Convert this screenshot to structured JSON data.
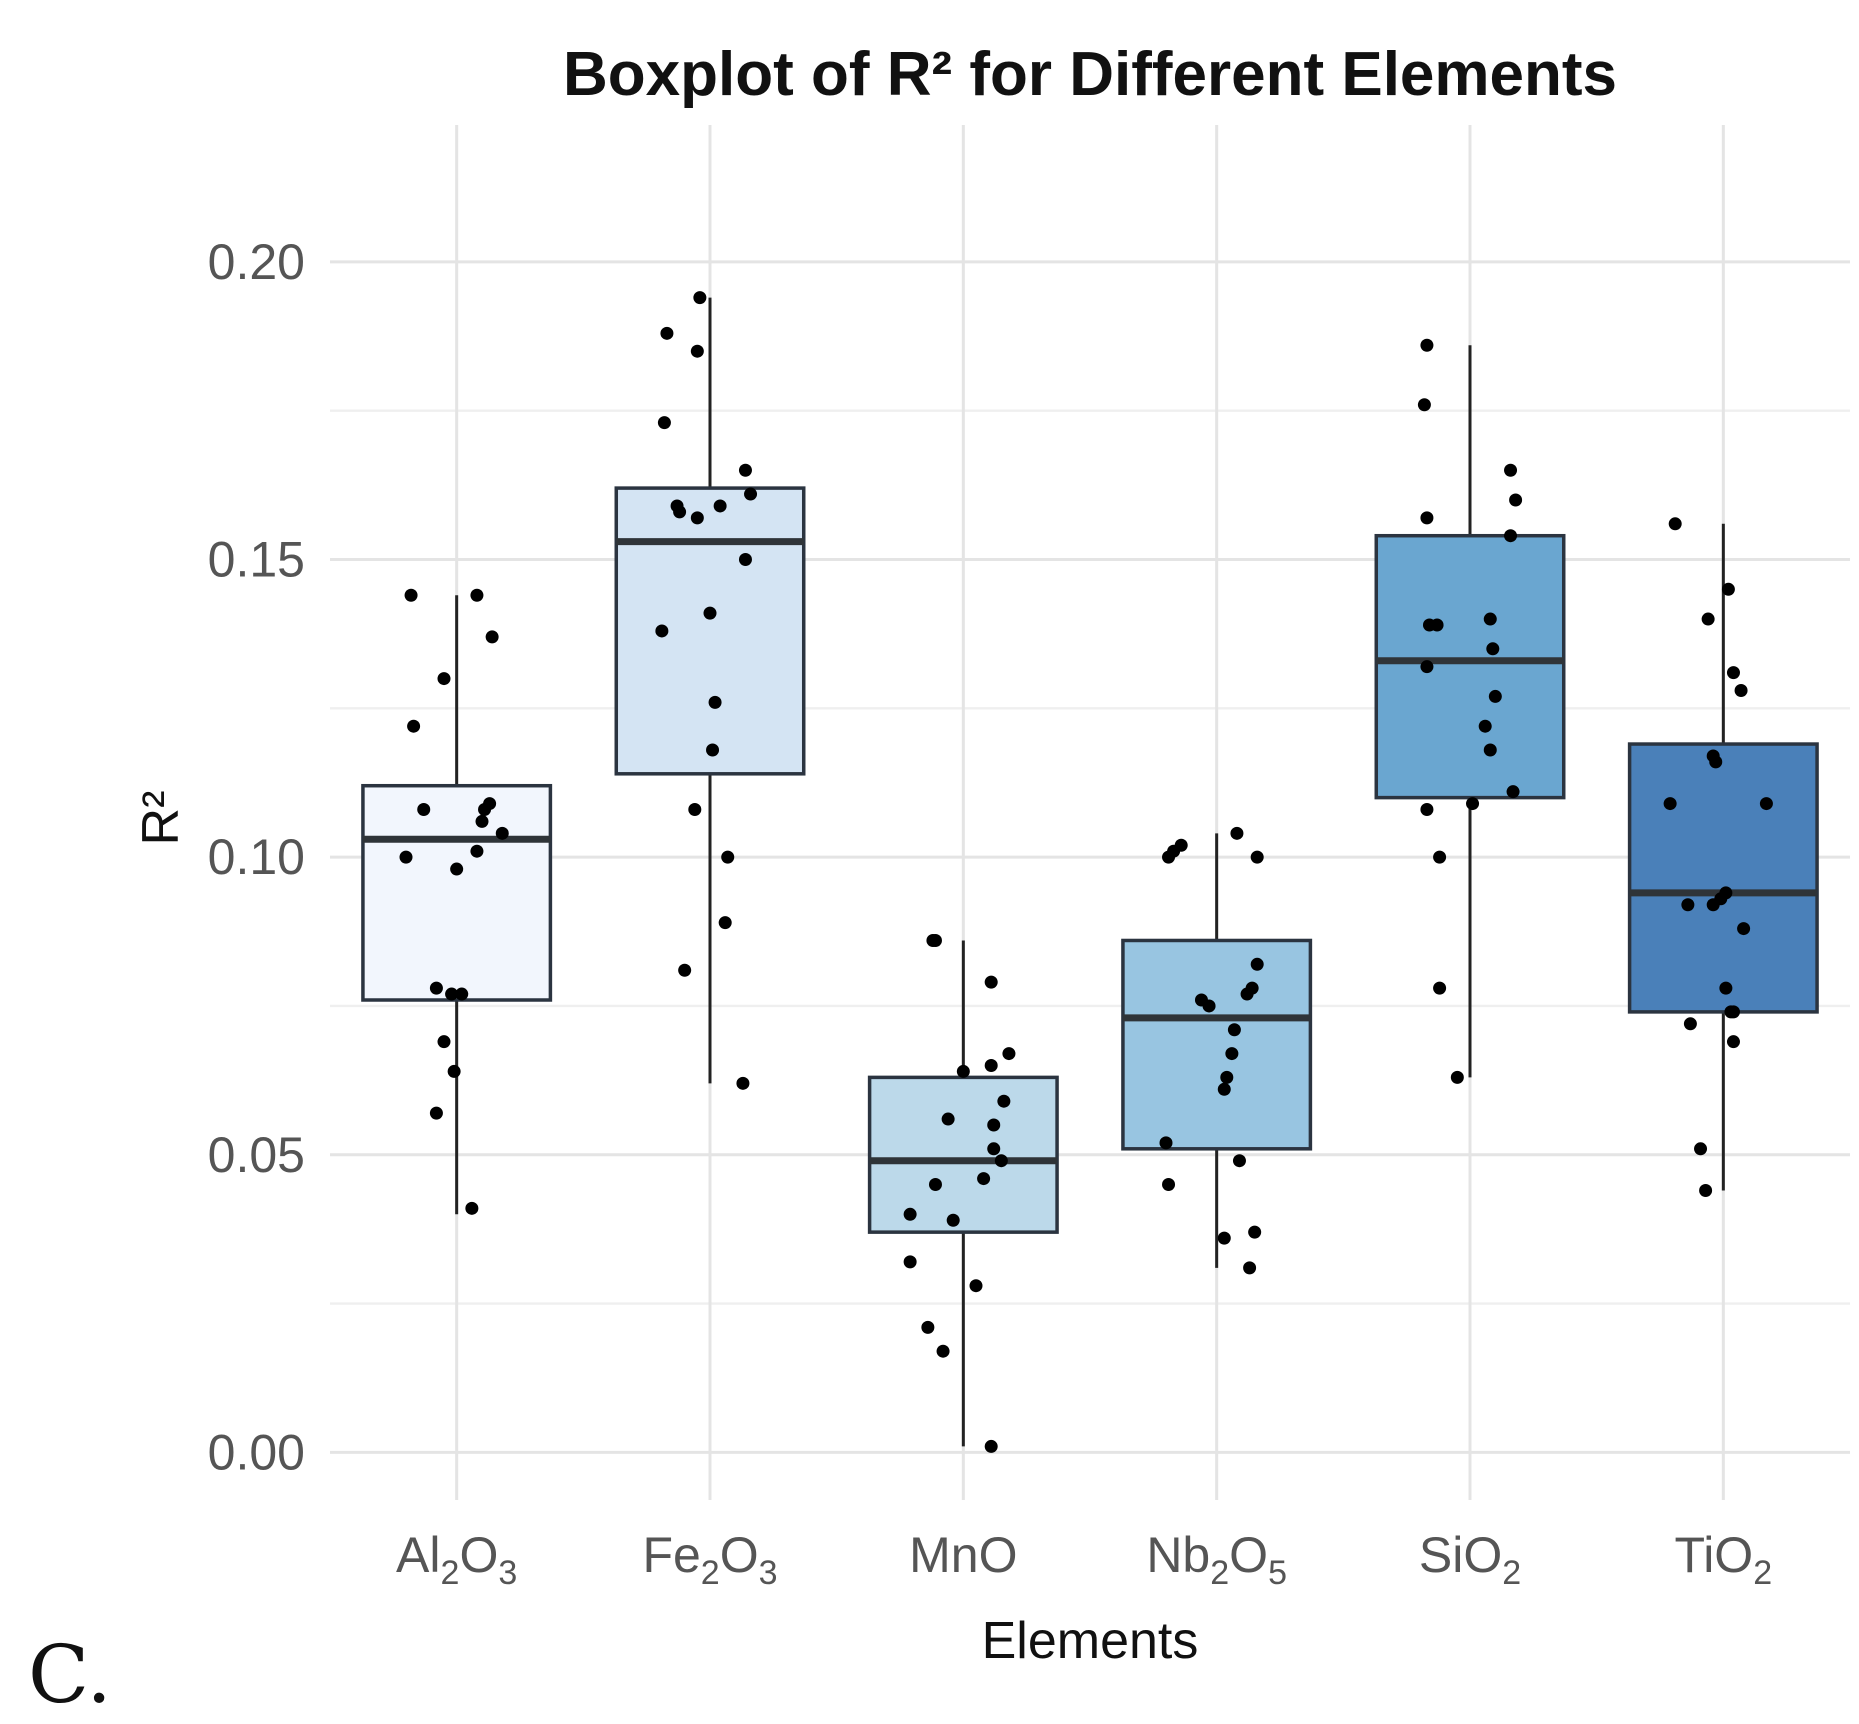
{
  "chart_data": {
    "type": "boxplot",
    "title": "Boxplot of R² for Different Elements",
    "xlabel": "Elements",
    "ylabel": "R²",
    "ylim": [
      -0.008,
      0.223
    ],
    "yticks": [
      "0.00",
      "0.05",
      "0.10",
      "0.15",
      "0.20"
    ],
    "ytick_values": [
      0.0,
      0.05,
      0.1,
      0.15,
      0.2
    ],
    "categories": [
      {
        "base": "Al",
        "s1": "2",
        "mid": "O",
        "s2": "3",
        "full": "Al2O3"
      },
      {
        "base": "Fe",
        "s1": "2",
        "mid": "O",
        "s2": "3",
        "full": "Fe2O3"
      },
      {
        "base": "MnO",
        "s1": "",
        "mid": "",
        "s2": "",
        "full": "MnO"
      },
      {
        "base": "Nb",
        "s1": "2",
        "mid": "O",
        "s2": "5",
        "full": "Nb2O5"
      },
      {
        "base": "SiO",
        "s1": "2",
        "mid": "",
        "s2": "",
        "full": "SiO2"
      },
      {
        "base": "TiO",
        "s1": "2",
        "mid": "",
        "s2": "",
        "full": "TiO2"
      }
    ],
    "boxes": [
      {
        "whisker_low": 0.04,
        "q1": 0.076,
        "median": 0.103,
        "q3": 0.112,
        "whisker_high": 0.144,
        "fill": "#f2f6fd"
      },
      {
        "whisker_low": 0.062,
        "q1": 0.114,
        "median": 0.153,
        "q3": 0.162,
        "whisker_high": 0.194,
        "fill": "#d4e4f3"
      },
      {
        "whisker_low": 0.001,
        "q1": 0.037,
        "median": 0.049,
        "q3": 0.063,
        "whisker_high": 0.086,
        "fill": "#bcd9ea"
      },
      {
        "whisker_low": 0.031,
        "q1": 0.051,
        "median": 0.073,
        "q3": 0.086,
        "whisker_high": 0.104,
        "fill": "#98c5e1"
      },
      {
        "whisker_low": 0.063,
        "q1": 0.11,
        "median": 0.133,
        "q3": 0.154,
        "whisker_high": 0.186,
        "fill": "#6aa6d0"
      },
      {
        "whisker_low": 0.044,
        "q1": 0.074,
        "median": 0.094,
        "q3": 0.119,
        "whisker_high": 0.156,
        "fill": "#4a80b9"
      }
    ],
    "points": [
      [
        {
          "j": -0.18,
          "y": 0.144
        },
        {
          "j": 0.08,
          "y": 0.144
        },
        {
          "j": 0.14,
          "y": 0.137
        },
        {
          "j": -0.05,
          "y": 0.13
        },
        {
          "j": -0.17,
          "y": 0.122
        },
        {
          "j": -0.13,
          "y": 0.108
        },
        {
          "j": 0.11,
          "y": 0.108
        },
        {
          "j": 0.13,
          "y": 0.109
        },
        {
          "j": 0.1,
          "y": 0.106
        },
        {
          "j": 0.18,
          "y": 0.104
        },
        {
          "j": -0.2,
          "y": 0.1
        },
        {
          "j": 0.08,
          "y": 0.101
        },
        {
          "j": 0.0,
          "y": 0.098
        },
        {
          "j": -0.08,
          "y": 0.078
        },
        {
          "j": -0.02,
          "y": 0.077
        },
        {
          "j": 0.02,
          "y": 0.077
        },
        {
          "j": -0.05,
          "y": 0.069
        },
        {
          "j": -0.01,
          "y": 0.064
        },
        {
          "j": -0.08,
          "y": 0.057
        },
        {
          "j": 0.06,
          "y": 0.041
        }
      ],
      [
        {
          "j": -0.04,
          "y": 0.194
        },
        {
          "j": -0.17,
          "y": 0.188
        },
        {
          "j": -0.05,
          "y": 0.185
        },
        {
          "j": -0.18,
          "y": 0.173
        },
        {
          "j": 0.14,
          "y": 0.165
        },
        {
          "j": 0.16,
          "y": 0.161
        },
        {
          "j": -0.13,
          "y": 0.159
        },
        {
          "j": -0.12,
          "y": 0.158
        },
        {
          "j": 0.04,
          "y": 0.159
        },
        {
          "j": -0.05,
          "y": 0.157
        },
        {
          "j": 0.14,
          "y": 0.15
        },
        {
          "j": 0.0,
          "y": 0.141
        },
        {
          "j": -0.19,
          "y": 0.138
        },
        {
          "j": 0.02,
          "y": 0.126
        },
        {
          "j": 0.01,
          "y": 0.118
        },
        {
          "j": -0.06,
          "y": 0.108
        },
        {
          "j": 0.07,
          "y": 0.1
        },
        {
          "j": 0.06,
          "y": 0.089
        },
        {
          "j": -0.1,
          "y": 0.081
        },
        {
          "j": 0.13,
          "y": 0.062
        }
      ],
      [
        {
          "j": -0.12,
          "y": 0.086
        },
        {
          "j": -0.11,
          "y": 0.086
        },
        {
          "j": 0.11,
          "y": 0.079
        },
        {
          "j": 0.18,
          "y": 0.067
        },
        {
          "j": 0.11,
          "y": 0.065
        },
        {
          "j": 0.0,
          "y": 0.064
        },
        {
          "j": 0.16,
          "y": 0.059
        },
        {
          "j": -0.06,
          "y": 0.056
        },
        {
          "j": 0.12,
          "y": 0.055
        },
        {
          "j": 0.12,
          "y": 0.051
        },
        {
          "j": 0.15,
          "y": 0.049
        },
        {
          "j": -0.11,
          "y": 0.045
        },
        {
          "j": 0.08,
          "y": 0.046
        },
        {
          "j": -0.21,
          "y": 0.04
        },
        {
          "j": -0.04,
          "y": 0.039
        },
        {
          "j": -0.21,
          "y": 0.032
        },
        {
          "j": 0.05,
          "y": 0.028
        },
        {
          "j": -0.14,
          "y": 0.021
        },
        {
          "j": -0.08,
          "y": 0.017
        },
        {
          "j": 0.11,
          "y": 0.001
        }
      ],
      [
        {
          "j": -0.19,
          "y": 0.1
        },
        {
          "j": -0.17,
          "y": 0.101
        },
        {
          "j": -0.14,
          "y": 0.102
        },
        {
          "j": 0.08,
          "y": 0.104
        },
        {
          "j": 0.16,
          "y": 0.1
        },
        {
          "j": 0.16,
          "y": 0.082
        },
        {
          "j": 0.14,
          "y": 0.078
        },
        {
          "j": 0.12,
          "y": 0.077
        },
        {
          "j": -0.06,
          "y": 0.076
        },
        {
          "j": -0.03,
          "y": 0.075
        },
        {
          "j": 0.07,
          "y": 0.071
        },
        {
          "j": 0.06,
          "y": 0.067
        },
        {
          "j": 0.04,
          "y": 0.063
        },
        {
          "j": 0.03,
          "y": 0.061
        },
        {
          "j": -0.2,
          "y": 0.052
        },
        {
          "j": 0.09,
          "y": 0.049
        },
        {
          "j": -0.19,
          "y": 0.045
        },
        {
          "j": 0.15,
          "y": 0.037
        },
        {
          "j": 0.03,
          "y": 0.036
        },
        {
          "j": 0.13,
          "y": 0.031
        }
      ],
      [
        {
          "j": -0.17,
          "y": 0.186
        },
        {
          "j": -0.18,
          "y": 0.176
        },
        {
          "j": 0.16,
          "y": 0.165
        },
        {
          "j": 0.18,
          "y": 0.16
        },
        {
          "j": -0.17,
          "y": 0.157
        },
        {
          "j": 0.16,
          "y": 0.154
        },
        {
          "j": -0.16,
          "y": 0.139
        },
        {
          "j": -0.13,
          "y": 0.139
        },
        {
          "j": 0.08,
          "y": 0.14
        },
        {
          "j": 0.09,
          "y": 0.135
        },
        {
          "j": -0.17,
          "y": 0.132
        },
        {
          "j": 0.1,
          "y": 0.127
        },
        {
          "j": 0.06,
          "y": 0.122
        },
        {
          "j": 0.08,
          "y": 0.118
        },
        {
          "j": 0.17,
          "y": 0.111
        },
        {
          "j": 0.01,
          "y": 0.109
        },
        {
          "j": -0.17,
          "y": 0.108
        },
        {
          "j": -0.12,
          "y": 0.1
        },
        {
          "j": -0.12,
          "y": 0.078
        },
        {
          "j": -0.05,
          "y": 0.063
        }
      ],
      [
        {
          "j": -0.19,
          "y": 0.156
        },
        {
          "j": 0.02,
          "y": 0.145
        },
        {
          "j": -0.06,
          "y": 0.14
        },
        {
          "j": 0.04,
          "y": 0.131
        },
        {
          "j": 0.07,
          "y": 0.128
        },
        {
          "j": -0.04,
          "y": 0.117
        },
        {
          "j": -0.03,
          "y": 0.116
        },
        {
          "j": -0.21,
          "y": 0.109
        },
        {
          "j": 0.17,
          "y": 0.109
        },
        {
          "j": 0.01,
          "y": 0.094
        },
        {
          "j": -0.01,
          "y": 0.093
        },
        {
          "j": -0.04,
          "y": 0.092
        },
        {
          "j": -0.14,
          "y": 0.092
        },
        {
          "j": 0.08,
          "y": 0.088
        },
        {
          "j": 0.01,
          "y": 0.078
        },
        {
          "j": 0.04,
          "y": 0.074
        },
        {
          "j": 0.03,
          "y": 0.074
        },
        {
          "j": -0.13,
          "y": 0.072
        },
        {
          "j": 0.04,
          "y": 0.069
        },
        {
          "j": -0.09,
          "y": 0.051
        },
        {
          "j": -0.07,
          "y": 0.044
        }
      ]
    ]
  },
  "panel_label": "C."
}
